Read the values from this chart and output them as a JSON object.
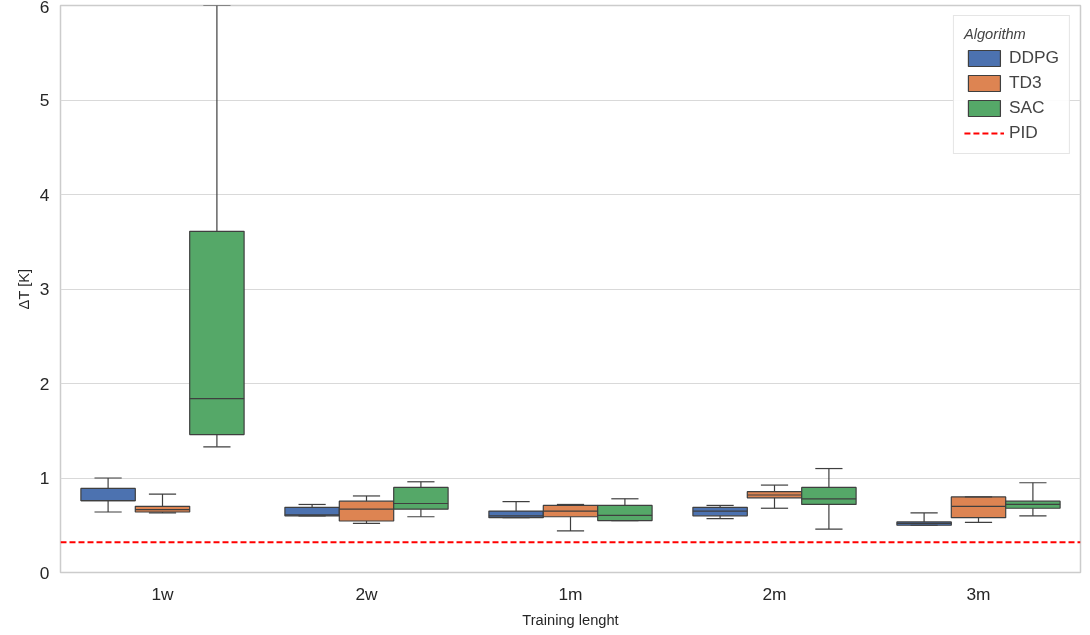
{
  "chart_data": {
    "type": "box",
    "xlabel": "Training lenght",
    "ylabel": "ΔT [K]",
    "legend_title": "Algorithm",
    "legend": "top right",
    "grid": "y",
    "categories": [
      "1w",
      "2w",
      "1m",
      "2m",
      "3m"
    ],
    "ylim": [
      0,
      6
    ],
    "yticks": [
      0,
      1,
      2,
      3,
      4,
      5,
      6
    ],
    "series": [
      {
        "name": "DDPG",
        "color": "#4c72b0",
        "boxes": [
          {
            "low": 0.64,
            "q1": 0.76,
            "median": 0.76,
            "q3": 0.89,
            "high": 1.0
          },
          {
            "low": 0.6,
            "q1": 0.6,
            "median": 0.61,
            "q3": 0.69,
            "high": 0.72
          },
          {
            "low": 0.58,
            "q1": 0.58,
            "median": 0.6,
            "q3": 0.65,
            "high": 0.75
          },
          {
            "low": 0.57,
            "q1": 0.6,
            "median": 0.65,
            "q3": 0.69,
            "high": 0.71
          },
          {
            "low": 0.5,
            "q1": 0.5,
            "median": 0.52,
            "q3": 0.535,
            "high": 0.63
          }
        ]
      },
      {
        "name": "TD3",
        "color": "#dd8452",
        "boxes": [
          {
            "low": 0.63,
            "q1": 0.64,
            "median": 0.665,
            "q3": 0.7,
            "high": 0.83
          },
          {
            "low": 0.52,
            "q1": 0.545,
            "median": 0.67,
            "q3": 0.755,
            "high": 0.81
          },
          {
            "low": 0.44,
            "q1": 0.59,
            "median": 0.65,
            "q3": 0.71,
            "high": 0.72
          },
          {
            "low": 0.68,
            "q1": 0.79,
            "median": 0.82,
            "q3": 0.855,
            "high": 0.925
          },
          {
            "low": 0.53,
            "q1": 0.58,
            "median": 0.7,
            "q3": 0.8,
            "high": 0.8
          }
        ]
      },
      {
        "name": "SAC",
        "color": "#55a868",
        "boxes": [
          {
            "low": 1.33,
            "q1": 1.46,
            "median": 1.84,
            "q3": 3.61,
            "high": 6.0
          },
          {
            "low": 0.59,
            "q1": 0.67,
            "median": 0.73,
            "q3": 0.9,
            "high": 0.96
          },
          {
            "low": 0.55,
            "q1": 0.55,
            "median": 0.605,
            "q3": 0.71,
            "high": 0.78
          },
          {
            "low": 0.46,
            "q1": 0.72,
            "median": 0.78,
            "q3": 0.9,
            "high": 1.1
          },
          {
            "low": 0.6,
            "q1": 0.68,
            "median": 0.72,
            "q3": 0.755,
            "high": 0.95
          }
        ]
      }
    ],
    "ref_lines": [
      {
        "axis": "y",
        "value": 0.32,
        "label": "PID",
        "color": "#ff0000",
        "line_style": "dashed"
      }
    ]
  }
}
